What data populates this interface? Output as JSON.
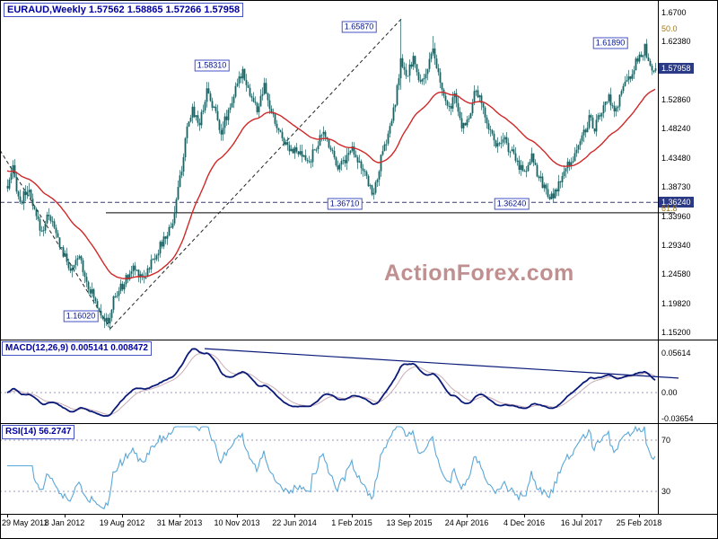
{
  "watermark": "ActionForex.com",
  "colors": {
    "candle": "#1f5f5f",
    "ma_line": "#d02828",
    "macd_line": "#0a1a78",
    "macd_signal": "#c9adb5",
    "rsi_line": "#5aa7d8",
    "axis_tag_bg": "#2b3a85",
    "fib_label": "#a07818"
  },
  "chart_data": [
    {
      "type": "candlestick",
      "symbol": "EURAUD",
      "timeframe": "Weekly",
      "title_text": "EURAUD,Weekly 1.57562 1.58865 1.57266 1.57958",
      "ohlc": {
        "open": 1.57562,
        "high": 1.58865,
        "low": 1.57266,
        "close": 1.57958
      },
      "ylim": [
        1.131,
        1.685
      ],
      "y_axis_labels": [
        "1.6700",
        "1.62380",
        "1.57958",
        "1.52860",
        "1.48240",
        "1.43480",
        "1.38730",
        "1.36240",
        "1.33960",
        "1.29340",
        "1.24580",
        "1.19820",
        "1.15200"
      ],
      "y_axis_highlighted": [
        "1.57958",
        "1.36240"
      ],
      "x_axis_labels": [
        "29 May 2011",
        "8 Jan 2012",
        "19 Aug 2012",
        "31 Mar 2013",
        "10 Nov 2013",
        "22 Jun 2014",
        "1 Feb 2015",
        "13 Sep 2015",
        "24 Apr 2016",
        "4 Dec 2016",
        "16 Jul 2017",
        "25 Feb 2018"
      ],
      "weeks_per_tick": 32,
      "annotations": [
        {
          "text": "1.16020",
          "week": 41,
          "price": 1.178
        },
        {
          "text": "1.58310",
          "week": 114,
          "price": 1.5845
        },
        {
          "text": "1.65870",
          "week": 196,
          "price": 1.6465
        },
        {
          "text": "1.36710",
          "week": 188,
          "price": 1.36
        },
        {
          "text": "1.36240",
          "week": 281,
          "price": 1.36
        },
        {
          "text": "1.61890",
          "week": 336,
          "price": 1.621
        }
      ],
      "hline_dashed": 1.3624,
      "fib_line_price": 1.3455,
      "fib_levels": [
        {
          "text": "50.0",
          "price": 1.6438
        },
        {
          "text": "61.8",
          "price": 1.3527
        }
      ],
      "trendlines": [
        {
          "w1": -4,
          "p1": 1.447,
          "w2": 57.5,
          "p2": 1.158
        },
        {
          "w1": 57.5,
          "p1": 1.158,
          "w2": 219.5,
          "p2": 1.6595
        }
      ],
      "keyframes": [
        [
          0,
          1.385
        ],
        [
          3,
          1.415
        ],
        [
          7,
          1.36
        ],
        [
          11,
          1.385
        ],
        [
          15,
          1.345
        ],
        [
          19,
          1.315
        ],
        [
          23,
          1.345
        ],
        [
          27,
          1.31
        ],
        [
          32,
          1.272
        ],
        [
          36,
          1.25
        ],
        [
          40,
          1.276
        ],
        [
          44,
          1.235
        ],
        [
          48,
          1.208
        ],
        [
          52,
          1.185
        ],
        [
          56,
          1.163
        ],
        [
          59,
          1.205
        ],
        [
          64,
          1.228
        ],
        [
          70,
          1.256
        ],
        [
          76,
          1.242
        ],
        [
          82,
          1.276
        ],
        [
          88,
          1.306
        ],
        [
          92,
          1.332
        ],
        [
          96,
          1.4
        ],
        [
          100,
          1.478
        ],
        [
          103,
          1.514
        ],
        [
          107,
          1.49
        ],
        [
          111,
          1.545
        ],
        [
          115,
          1.515
        ],
        [
          119,
          1.478
        ],
        [
          124,
          1.52
        ],
        [
          128,
          1.552
        ],
        [
          131,
          1.578
        ],
        [
          135,
          1.538
        ],
        [
          139,
          1.512
        ],
        [
          143,
          1.548
        ],
        [
          147,
          1.506
        ],
        [
          151,
          1.478
        ],
        [
          155,
          1.458
        ],
        [
          160,
          1.446
        ],
        [
          164,
          1.436
        ],
        [
          168,
          1.427
        ],
        [
          172,
          1.455
        ],
        [
          176,
          1.474
        ],
        [
          180,
          1.452
        ],
        [
          184,
          1.422
        ],
        [
          188,
          1.432
        ],
        [
          192,
          1.452
        ],
        [
          196,
          1.428
        ],
        [
          200,
          1.398
        ],
        [
          204,
          1.376
        ],
        [
          208,
          1.432
        ],
        [
          212,
          1.472
        ],
        [
          216,
          1.522
        ],
        [
          219,
          1.592
        ],
        [
          222,
          1.562
        ],
        [
          226,
          1.598
        ],
        [
          229,
          1.556
        ],
        [
          233,
          1.572
        ],
        [
          237,
          1.606
        ],
        [
          241,
          1.556
        ],
        [
          245,
          1.512
        ],
        [
          249,
          1.532
        ],
        [
          253,
          1.484
        ],
        [
          257,
          1.502
        ],
        [
          261,
          1.546
        ],
        [
          265,
          1.512
        ],
        [
          269,
          1.478
        ],
        [
          273,
          1.452
        ],
        [
          277,
          1.462
        ],
        [
          281,
          1.442
        ],
        [
          285,
          1.422
        ],
        [
          289,
          1.414
        ],
        [
          292,
          1.442
        ],
        [
          296,
          1.402
        ],
        [
          300,
          1.382
        ],
        [
          304,
          1.368
        ],
        [
          308,
          1.398
        ],
        [
          312,
          1.422
        ],
        [
          316,
          1.44
        ],
        [
          320,
          1.468
        ],
        [
          324,
          1.498
        ],
        [
          327,
          1.484
        ],
        [
          331,
          1.51
        ],
        [
          335,
          1.532
        ],
        [
          338,
          1.502
        ],
        [
          342,
          1.544
        ],
        [
          346,
          1.562
        ],
        [
          350,
          1.588
        ],
        [
          353,
          1.602
        ],
        [
          355,
          1.612
        ],
        [
          357,
          1.585
        ],
        [
          359,
          1.57
        ],
        [
          361,
          1.5796
        ]
      ],
      "pinned": [
        {
          "week": 56,
          "low": 1.1602
        },
        {
          "week": 131,
          "high": 1.5831
        },
        {
          "week": 204,
          "low": 1.3671
        },
        {
          "week": 219,
          "high": 1.6587,
          "low": 1.545
        },
        {
          "week": 237,
          "high": 1.632
        },
        {
          "week": 304,
          "low": 1.3624
        },
        {
          "week": 355,
          "high": 1.6189
        },
        {
          "week": 361,
          "open": 1.57562,
          "high": 1.58865,
          "low": 1.57266,
          "close": 1.57958
        }
      ]
    },
    {
      "type": "line",
      "indicator": "MACD",
      "params": [
        12,
        26,
        9
      ],
      "title_text": "MACD(12,26,9) 0.005141 0.008472",
      "current_macd": 0.005141,
      "current_signal": 0.008472,
      "y_axis_labels": [
        "0.05614",
        "0.00",
        "-0.03654"
      ],
      "trendline": {
        "w1": 110,
        "v1": 0.0625,
        "w2": 374,
        "v2": 0.0205
      }
    },
    {
      "type": "line",
      "indicator": "RSI",
      "period": 14,
      "title_text": "RSI(14) 56.2747",
      "current": 56.2747,
      "levels": [
        70,
        30
      ],
      "y_axis_labels": [
        "70",
        "30"
      ]
    }
  ]
}
